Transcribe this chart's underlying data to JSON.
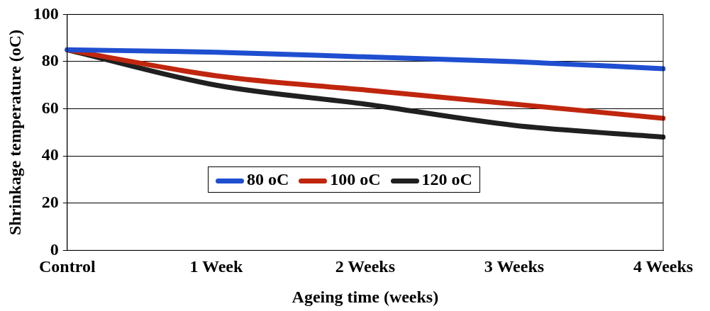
{
  "chart_data": {
    "type": "line",
    "xlabel": "Ageing time (weeks)",
    "ylabel": "Shrinkage temperature (oC)",
    "categories": [
      "Control",
      "1 Week",
      "2 Weeks",
      "3 Weeks",
      "4 Weeks"
    ],
    "series": [
      {
        "name": "80 oC",
        "color": "#1f4fd0",
        "values": [
          85,
          84,
          82,
          80,
          77
        ]
      },
      {
        "name": "100 oC",
        "color": "#c0260e",
        "values": [
          85,
          74,
          68,
          62,
          56
        ]
      },
      {
        "name": "120 oC",
        "color": "#202020",
        "values": [
          85,
          70,
          62,
          53,
          48
        ]
      }
    ],
    "ylim": [
      0,
      100
    ],
    "yticks": [
      0,
      20,
      40,
      60,
      80,
      100
    ],
    "grid": "y",
    "legend": "bottom",
    "marker": "none",
    "line_style": "solid"
  }
}
